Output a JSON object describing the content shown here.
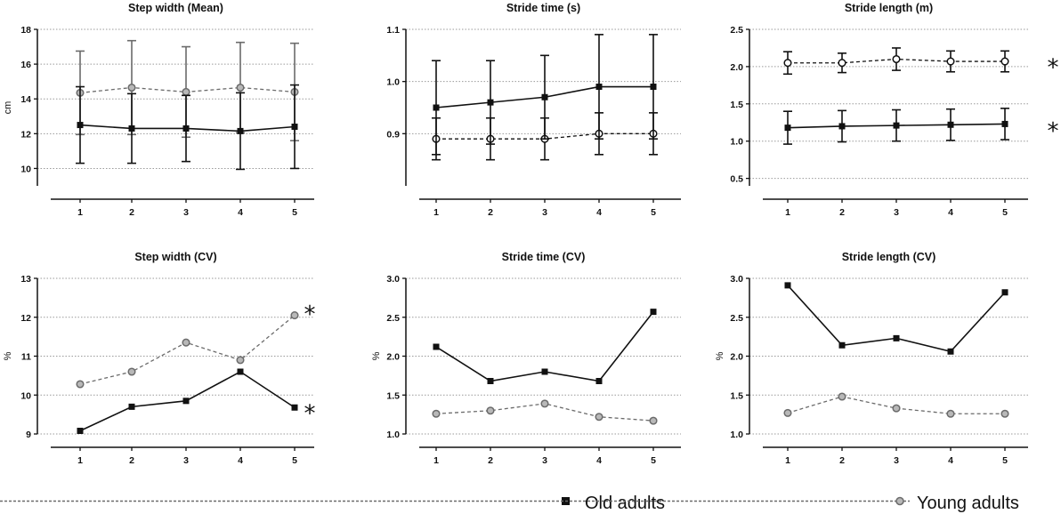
{
  "colors": {
    "old": "#111111",
    "young": "#6b6b6b",
    "grid": "#9a9a9a"
  },
  "legend": {
    "old_label": "Old adults",
    "young_label": "Young adults"
  },
  "chart_data": [
    {
      "type": "line",
      "title": "Step width (Mean)",
      "ylabel": "cm",
      "ylim": [
        9,
        18
      ],
      "yticks": [
        10,
        12,
        14,
        16,
        18
      ],
      "ytick_labels": [
        "10",
        "12",
        "14",
        "16",
        "18"
      ],
      "categories": [
        "1",
        "2",
        "3",
        "4",
        "5"
      ],
      "star_positions": [],
      "series": [
        {
          "name": "Old adults",
          "values": [
            12.5,
            12.3,
            12.3,
            12.15,
            12.4
          ],
          "errors": [
            2.2,
            2.0,
            1.9,
            2.2,
            2.4
          ]
        },
        {
          "name": "Young adults",
          "values": [
            14.35,
            14.65,
            14.4,
            14.65,
            14.4
          ],
          "errors": [
            2.4,
            2.7,
            2.6,
            2.6,
            2.8
          ]
        }
      ]
    },
    {
      "type": "line",
      "title": "Stride time (s)",
      "ylabel": "",
      "ylim": [
        0.8,
        1.1
      ],
      "yticks": [
        0.9,
        1.0,
        1.1
      ],
      "ytick_labels": [
        "0.9",
        "1.0",
        "1.1"
      ],
      "categories": [
        "1",
        "2",
        "3",
        "4",
        "5"
      ],
      "star_positions": [],
      "series": [
        {
          "name": "Old adults",
          "values": [
            0.95,
            0.96,
            0.97,
            0.99,
            0.99
          ],
          "errors": [
            0.09,
            0.08,
            0.08,
            0.1,
            0.1
          ]
        },
        {
          "name": "Young adults",
          "values": [
            0.89,
            0.89,
            0.89,
            0.9,
            0.9
          ],
          "errors": [
            0.04,
            0.04,
            0.04,
            0.04,
            0.04
          ]
        }
      ]
    },
    {
      "type": "line",
      "title": "Stride length (m)",
      "ylabel": "",
      "ylim": [
        0.4,
        2.5
      ],
      "yticks": [
        0.5,
        1.0,
        1.5,
        2.0,
        2.5
      ],
      "ytick_labels": [
        "0.5",
        "1.0",
        "1.5",
        "2.0",
        "2.5"
      ],
      "categories": [
        "1",
        "2",
        "3",
        "4",
        "5"
      ],
      "star_positions": [
        2.05,
        1.2
      ],
      "series": [
        {
          "name": "Old adults",
          "values": [
            1.18,
            1.2,
            1.21,
            1.22,
            1.23
          ],
          "errors": [
            0.22,
            0.21,
            0.21,
            0.21,
            0.21
          ]
        },
        {
          "name": "Young adults",
          "values": [
            2.05,
            2.05,
            2.1,
            2.07,
            2.07
          ],
          "errors": [
            0.15,
            0.13,
            0.15,
            0.14,
            0.14
          ]
        }
      ]
    },
    {
      "type": "line",
      "title": "Step width (CV)",
      "ylabel": "%",
      "ylim": [
        9,
        13
      ],
      "yticks": [
        9,
        10,
        11,
        12,
        13
      ],
      "ytick_labels": [
        "9",
        "10",
        "11",
        "12",
        "13"
      ],
      "categories": [
        "1",
        "2",
        "3",
        "4",
        "5"
      ],
      "star_positions": [
        12.2,
        9.65
      ],
      "series": [
        {
          "name": "Old adults",
          "values": [
            9.08,
            9.7,
            9.85,
            10.6,
            9.68
          ]
        },
        {
          "name": "Young adults",
          "values": [
            10.28,
            10.6,
            11.35,
            10.9,
            12.05
          ]
        }
      ]
    },
    {
      "type": "line",
      "title": "Stride time (CV)",
      "ylabel": "%",
      "ylim": [
        1.0,
        3.0
      ],
      "yticks": [
        1.0,
        1.5,
        2.0,
        2.5,
        3.0
      ],
      "ytick_labels": [
        "1.0",
        "1.5",
        "2.0",
        "2.5",
        "3.0"
      ],
      "categories": [
        "1",
        "2",
        "3",
        "4",
        "5"
      ],
      "star_positions": [],
      "series": [
        {
          "name": "Old adults",
          "values": [
            2.12,
            1.68,
            1.8,
            1.68,
            2.57
          ]
        },
        {
          "name": "Young adults",
          "values": [
            1.26,
            1.3,
            1.39,
            1.22,
            1.17
          ]
        }
      ]
    },
    {
      "type": "line",
      "title": "Stride length (CV)",
      "ylabel": "%",
      "ylim": [
        1.0,
        3.0
      ],
      "yticks": [
        1.0,
        1.5,
        2.0,
        2.5,
        3.0
      ],
      "ytick_labels": [
        "1.0",
        "1.5",
        "2.0",
        "2.5",
        "3.0"
      ],
      "categories": [
        "1",
        "2",
        "3",
        "4",
        "5"
      ],
      "star_positions": [],
      "series": [
        {
          "name": "Old adults",
          "values": [
            2.91,
            2.14,
            2.23,
            2.06,
            2.82
          ]
        },
        {
          "name": "Young adults",
          "values": [
            1.27,
            1.48,
            1.33,
            1.26,
            1.26
          ]
        }
      ]
    }
  ],
  "annotation_symbol": "*"
}
